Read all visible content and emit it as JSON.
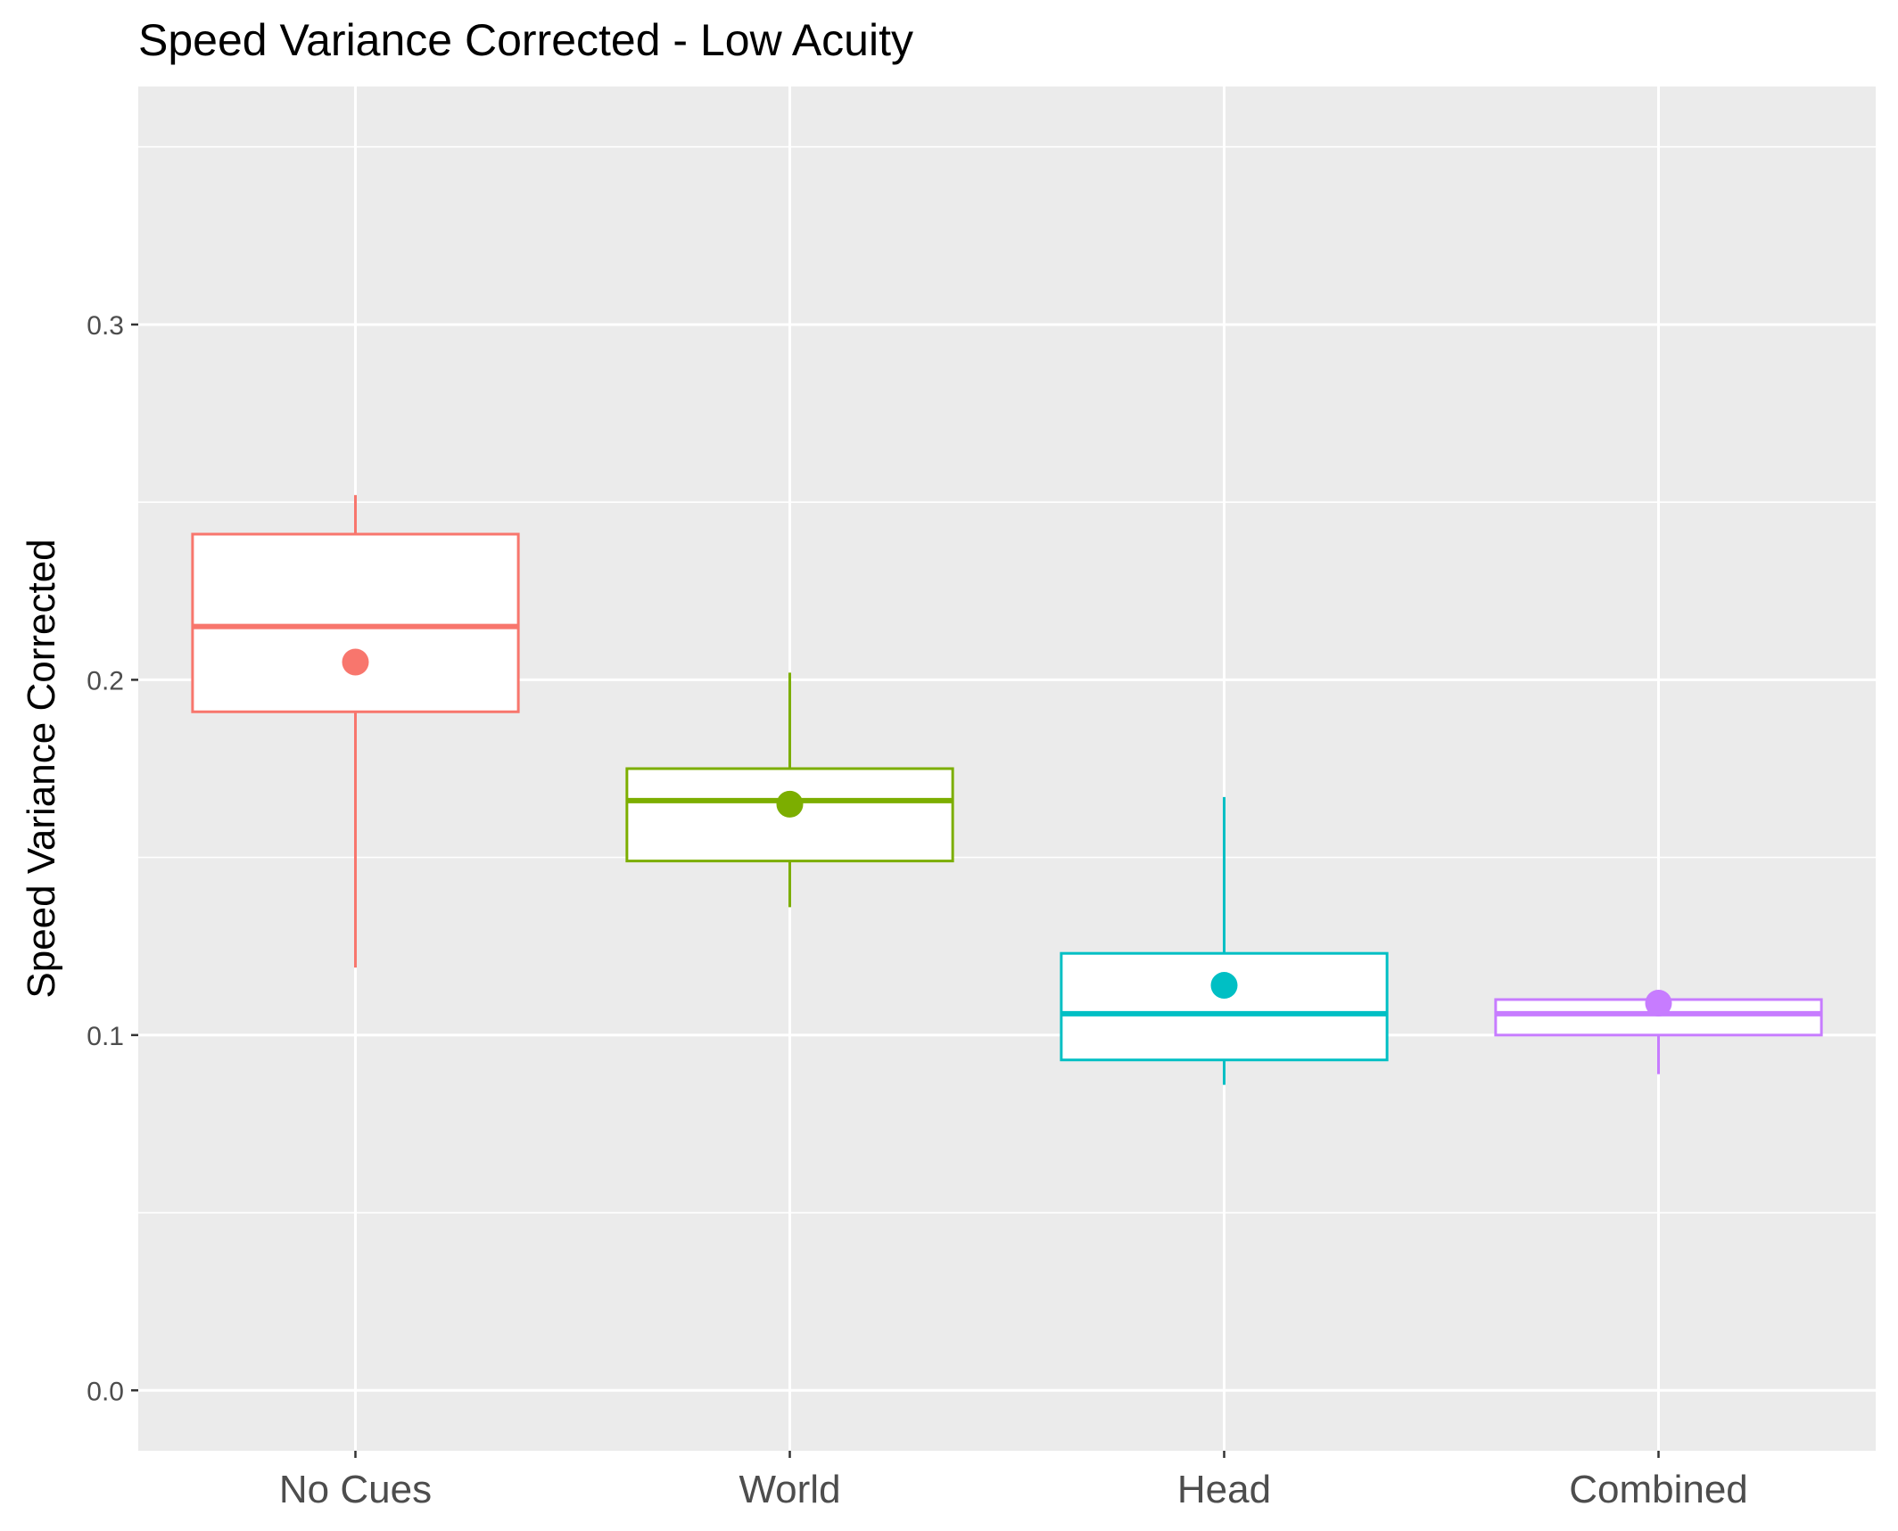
{
  "chart_data": {
    "type": "box",
    "title": "Speed Variance Corrected - Low Acuity",
    "xlabel": "",
    "ylabel": "Speed Variance Corrected",
    "categories": [
      "No Cues",
      "World",
      "Head",
      "Combined"
    ],
    "yticks": [
      "0.0",
      "0.1",
      "0.2",
      "0.3"
    ],
    "ylim": [
      -0.017,
      0.367
    ],
    "grid": true,
    "legend": "none",
    "boxes": [
      {
        "category": "No Cues",
        "lower_whisker": 0.119,
        "q1": 0.191,
        "median": 0.215,
        "q3": 0.241,
        "upper_whisker": 0.252,
        "mean": 0.205,
        "color": "#F8766D"
      },
      {
        "category": "World",
        "lower_whisker": 0.136,
        "q1": 0.149,
        "median": 0.166,
        "q3": 0.175,
        "upper_whisker": 0.202,
        "mean": 0.165,
        "color": "#7CAE00"
      },
      {
        "category": "Head",
        "lower_whisker": 0.086,
        "q1": 0.093,
        "median": 0.106,
        "q3": 0.123,
        "upper_whisker": 0.167,
        "mean": 0.114,
        "color": "#00BFC4"
      },
      {
        "category": "Combined",
        "lower_whisker": 0.089,
        "q1": 0.1,
        "median": 0.106,
        "q3": 0.11,
        "upper_whisker": 0.11,
        "mean": 0.109,
        "color": "#C77CFF"
      }
    ]
  }
}
